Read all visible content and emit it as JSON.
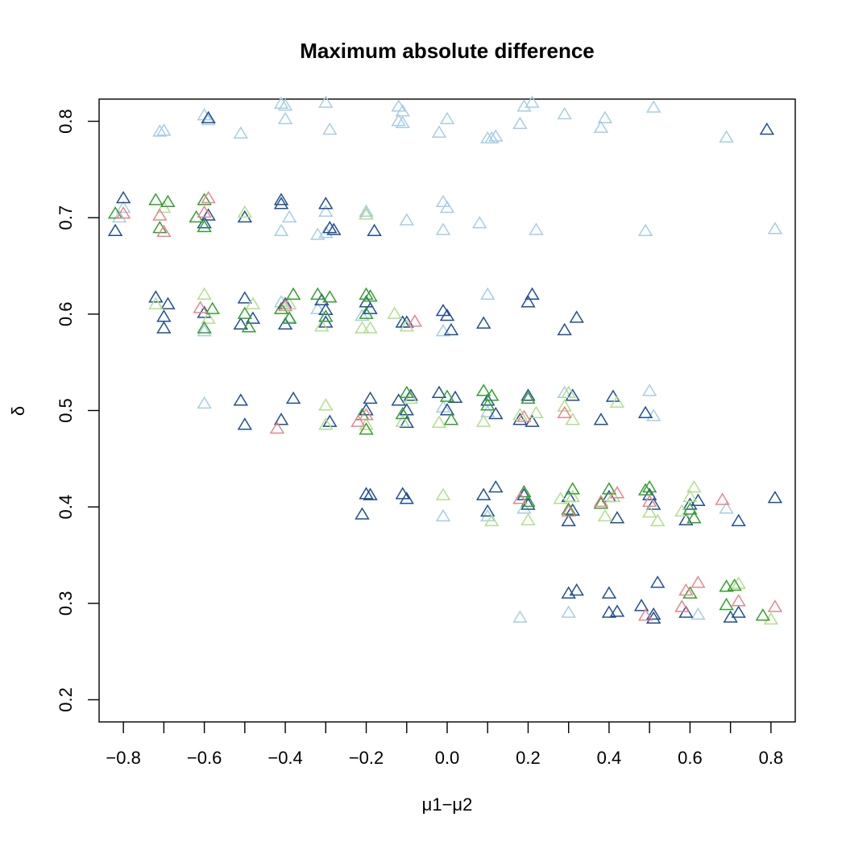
{
  "chart_data": {
    "type": "scatter",
    "title": "Maximum absolute difference",
    "xlabel": "μ1−μ2",
    "ylabel": "δ",
    "xlim": [
      -0.86,
      0.86
    ],
    "ylim": [
      0.177,
      0.823
    ],
    "xticks": [
      -0.8,
      -0.7,
      -0.6,
      -0.5,
      -0.4,
      -0.3,
      -0.2,
      -0.1,
      0.0,
      0.1,
      0.2,
      0.3,
      0.4,
      0.5,
      0.6,
      0.7,
      0.8
    ],
    "xtick_labels": [
      "−0.8",
      "",
      "−0.6",
      "",
      "−0.4",
      "",
      "−0.2",
      "",
      "0.0",
      "",
      "0.2",
      "",
      "0.4",
      "",
      "0.6",
      "",
      "0.8"
    ],
    "yticks": [
      0.2,
      0.3,
      0.4,
      0.5,
      0.6,
      0.7,
      0.8
    ],
    "ytick_labels": [
      "0.2",
      "0.3",
      "0.4",
      "0.5",
      "0.6",
      "0.7",
      "0.8"
    ],
    "grid": false,
    "marker": "open-triangle",
    "series": [
      {
        "color": "#a6cee3",
        "points": [
          [
            -0.6,
            0.806
          ],
          [
            -0.59,
            0.801
          ],
          [
            -0.71,
            0.789
          ],
          [
            -0.7,
            0.79
          ],
          [
            -0.51,
            0.787
          ],
          [
            -0.41,
            0.818
          ],
          [
            -0.4,
            0.816
          ],
          [
            -0.4,
            0.802
          ],
          [
            -0.3,
            0.819
          ],
          [
            -0.29,
            0.791
          ],
          [
            -0.12,
            0.815
          ],
          [
            -0.11,
            0.81
          ],
          [
            -0.12,
            0.8
          ],
          [
            -0.11,
            0.798
          ],
          [
            -0.02,
            0.788
          ],
          [
            0.0,
            0.802
          ],
          [
            0.1,
            0.782
          ],
          [
            0.11,
            0.782
          ],
          [
            0.12,
            0.784
          ],
          [
            0.19,
            0.815
          ],
          [
            0.21,
            0.819
          ],
          [
            0.18,
            0.797
          ],
          [
            0.29,
            0.807
          ],
          [
            0.38,
            0.793
          ],
          [
            0.39,
            0.803
          ],
          [
            0.51,
            0.814
          ],
          [
            0.69,
            0.783
          ],
          [
            -0.81,
            0.7
          ],
          [
            -0.8,
            0.71
          ],
          [
            -0.41,
            0.686
          ],
          [
            -0.39,
            0.7
          ],
          [
            -0.3,
            0.684
          ],
          [
            -0.32,
            0.682
          ],
          [
            -0.3,
            0.706
          ],
          [
            -0.2,
            0.706
          ],
          [
            -0.1,
            0.697
          ],
          [
            -0.01,
            0.716
          ],
          [
            0.0,
            0.71
          ],
          [
            -0.01,
            0.687
          ],
          [
            0.08,
            0.694
          ],
          [
            0.22,
            0.687
          ],
          [
            0.49,
            0.686
          ],
          [
            0.81,
            0.688
          ],
          [
            -0.6,
            0.582
          ],
          [
            -0.41,
            0.612
          ],
          [
            -0.39,
            0.596
          ],
          [
            -0.32,
            0.605
          ],
          [
            -0.21,
            0.598
          ],
          [
            -0.01,
            0.582
          ],
          [
            0.1,
            0.62
          ],
          [
            -0.6,
            0.507
          ],
          [
            -0.01,
            0.503
          ],
          [
            0.1,
            0.498
          ],
          [
            0.29,
            0.518
          ],
          [
            0.5,
            0.52
          ],
          [
            0.51,
            0.494
          ],
          [
            0.1,
            0.39
          ],
          [
            0.19,
            0.398
          ],
          [
            0.69,
            0.398
          ],
          [
            -0.01,
            0.39
          ],
          [
            0.18,
            0.285
          ],
          [
            0.3,
            0.29
          ],
          [
            0.62,
            0.288
          ]
        ]
      },
      {
        "color": "#1f4e96",
        "points": [
          [
            -0.59,
            0.803
          ],
          [
            0.79,
            0.791
          ],
          [
            -0.82,
            0.686
          ],
          [
            -0.8,
            0.72
          ],
          [
            -0.6,
            0.694
          ],
          [
            -0.59,
            0.702
          ],
          [
            -0.5,
            0.7
          ],
          [
            -0.41,
            0.718
          ],
          [
            -0.41,
            0.714
          ],
          [
            -0.3,
            0.714
          ],
          [
            -0.29,
            0.689
          ],
          [
            -0.2,
            0.703
          ],
          [
            -0.18,
            0.686
          ],
          [
            -0.28,
            0.687
          ],
          [
            -0.72,
            0.617
          ],
          [
            -0.7,
            0.585
          ],
          [
            -0.69,
            0.61
          ],
          [
            -0.7,
            0.597
          ],
          [
            -0.6,
            0.601
          ],
          [
            -0.5,
            0.616
          ],
          [
            -0.51,
            0.589
          ],
          [
            -0.48,
            0.595
          ],
          [
            -0.4,
            0.61
          ],
          [
            -0.4,
            0.589
          ],
          [
            -0.31,
            0.614
          ],
          [
            -0.3,
            0.604
          ],
          [
            -0.3,
            0.591
          ],
          [
            -0.2,
            0.612
          ],
          [
            -0.19,
            0.605
          ],
          [
            -0.11,
            0.591
          ],
          [
            -0.1,
            0.591
          ],
          [
            -0.01,
            0.603
          ],
          [
            0.0,
            0.598
          ],
          [
            0.01,
            0.583
          ],
          [
            0.09,
            0.59
          ],
          [
            0.2,
            0.612
          ],
          [
            0.21,
            0.62
          ],
          [
            0.29,
            0.583
          ],
          [
            0.32,
            0.596
          ],
          [
            -0.51,
            0.51
          ],
          [
            -0.5,
            0.485
          ],
          [
            -0.41,
            0.49
          ],
          [
            -0.38,
            0.512
          ],
          [
            -0.29,
            0.488
          ],
          [
            -0.2,
            0.5
          ],
          [
            -0.19,
            0.512
          ],
          [
            -0.12,
            0.51
          ],
          [
            -0.1,
            0.5
          ],
          [
            -0.09,
            0.515
          ],
          [
            -0.1,
            0.487
          ],
          [
            -0.02,
            0.518
          ],
          [
            0.0,
            0.5
          ],
          [
            0.02,
            0.513
          ],
          [
            0.1,
            0.51
          ],
          [
            0.12,
            0.496
          ],
          [
            0.18,
            0.49
          ],
          [
            0.2,
            0.515
          ],
          [
            0.21,
            0.488
          ],
          [
            0.31,
            0.515
          ],
          [
            0.38,
            0.49
          ],
          [
            0.41,
            0.514
          ],
          [
            0.49,
            0.497
          ],
          [
            -0.21,
            0.392
          ],
          [
            -0.2,
            0.413
          ],
          [
            -0.19,
            0.412
          ],
          [
            -0.11,
            0.413
          ],
          [
            -0.1,
            0.408
          ],
          [
            0.09,
            0.412
          ],
          [
            0.1,
            0.395
          ],
          [
            0.12,
            0.42
          ],
          [
            0.19,
            0.412
          ],
          [
            0.2,
            0.402
          ],
          [
            0.3,
            0.41
          ],
          [
            0.31,
            0.396
          ],
          [
            0.3,
            0.385
          ],
          [
            0.4,
            0.41
          ],
          [
            0.42,
            0.388
          ],
          [
            0.5,
            0.412
          ],
          [
            0.51,
            0.402
          ],
          [
            0.6,
            0.402
          ],
          [
            0.59,
            0.386
          ],
          [
            0.62,
            0.406
          ],
          [
            0.72,
            0.385
          ],
          [
            0.81,
            0.409
          ],
          [
            0.3,
            0.31
          ],
          [
            0.32,
            0.313
          ],
          [
            0.4,
            0.31
          ],
          [
            0.4,
            0.29
          ],
          [
            0.42,
            0.291
          ],
          [
            0.48,
            0.297
          ],
          [
            0.51,
            0.288
          ],
          [
            0.52,
            0.321
          ],
          [
            0.51,
            0.284
          ],
          [
            0.59,
            0.29
          ],
          [
            0.7,
            0.285
          ],
          [
            0.72,
            0.29
          ]
        ]
      },
      {
        "color": "#b2df8a",
        "points": [
          [
            -0.5,
            0.705
          ],
          [
            -0.2,
            0.703
          ],
          [
            -0.7,
            0.71
          ],
          [
            -0.72,
            0.61
          ],
          [
            -0.6,
            0.62
          ],
          [
            -0.59,
            0.595
          ],
          [
            -0.48,
            0.61
          ],
          [
            -0.39,
            0.61
          ],
          [
            -0.31,
            0.587
          ],
          [
            -0.21,
            0.585
          ],
          [
            -0.19,
            0.585
          ],
          [
            -0.13,
            0.6
          ],
          [
            -0.1,
            0.587
          ],
          [
            -0.3,
            0.505
          ],
          [
            -0.3,
            0.485
          ],
          [
            -0.2,
            0.485
          ],
          [
            -0.11,
            0.488
          ],
          [
            -0.09,
            0.512
          ],
          [
            -0.02,
            0.487
          ],
          [
            0.09,
            0.488
          ],
          [
            0.18,
            0.495
          ],
          [
            0.22,
            0.497
          ],
          [
            0.29,
            0.504
          ],
          [
            0.31,
            0.49
          ],
          [
            0.3,
            0.518
          ],
          [
            0.42,
            0.508
          ],
          [
            -0.01,
            0.412
          ],
          [
            0.11,
            0.385
          ],
          [
            0.2,
            0.386
          ],
          [
            0.28,
            0.408
          ],
          [
            0.31,
            0.41
          ],
          [
            0.39,
            0.39
          ],
          [
            0.41,
            0.41
          ],
          [
            0.5,
            0.394
          ],
          [
            0.52,
            0.385
          ],
          [
            0.58,
            0.395
          ],
          [
            0.61,
            0.42
          ],
          [
            0.6,
            0.41
          ],
          [
            0.72,
            0.32
          ],
          [
            0.8,
            0.283
          ]
        ]
      },
      {
        "color": "#33a02c",
        "points": [
          [
            -0.82,
            0.704
          ],
          [
            -0.72,
            0.718
          ],
          [
            -0.69,
            0.716
          ],
          [
            -0.71,
            0.689
          ],
          [
            -0.62,
            0.7
          ],
          [
            -0.6,
            0.718
          ],
          [
            -0.6,
            0.69
          ],
          [
            -0.6,
            0.585
          ],
          [
            -0.58,
            0.605
          ],
          [
            -0.5,
            0.6
          ],
          [
            -0.49,
            0.586
          ],
          [
            -0.41,
            0.605
          ],
          [
            -0.38,
            0.62
          ],
          [
            -0.39,
            0.595
          ],
          [
            -0.32,
            0.62
          ],
          [
            -0.29,
            0.617
          ],
          [
            -0.3,
            0.597
          ],
          [
            -0.2,
            0.62
          ],
          [
            -0.19,
            0.618
          ],
          [
            -0.2,
            0.6
          ],
          [
            -0.21,
            0.495
          ],
          [
            -0.2,
            0.48
          ],
          [
            -0.1,
            0.518
          ],
          [
            -0.11,
            0.496
          ],
          [
            0.0,
            0.514
          ],
          [
            0.01,
            0.49
          ],
          [
            0.09,
            0.52
          ],
          [
            0.1,
            0.505
          ],
          [
            0.11,
            0.515
          ],
          [
            0.2,
            0.512
          ],
          [
            0.19,
            0.415
          ],
          [
            0.2,
            0.405
          ],
          [
            0.3,
            0.397
          ],
          [
            0.31,
            0.418
          ],
          [
            0.38,
            0.403
          ],
          [
            0.4,
            0.418
          ],
          [
            0.49,
            0.417
          ],
          [
            0.5,
            0.42
          ],
          [
            0.6,
            0.397
          ],
          [
            0.61,
            0.388
          ],
          [
            0.6,
            0.31
          ],
          [
            0.69,
            0.298
          ],
          [
            0.71,
            0.318
          ],
          [
            0.69,
            0.317
          ],
          [
            0.78,
            0.287
          ]
        ]
      },
      {
        "color": "#e7858f",
        "points": [
          [
            -0.8,
            0.704
          ],
          [
            -0.71,
            0.702
          ],
          [
            -0.7,
            0.685
          ],
          [
            -0.59,
            0.72
          ],
          [
            -0.6,
            0.705
          ],
          [
            -0.61,
            0.606
          ],
          [
            -0.4,
            0.608
          ],
          [
            -0.08,
            0.592
          ],
          [
            -0.42,
            0.481
          ],
          [
            -0.2,
            0.495
          ],
          [
            -0.22,
            0.488
          ],
          [
            0.19,
            0.493
          ],
          [
            0.29,
            0.497
          ],
          [
            0.18,
            0.408
          ],
          [
            0.3,
            0.395
          ],
          [
            0.38,
            0.405
          ],
          [
            0.42,
            0.414
          ],
          [
            0.5,
            0.405
          ],
          [
            0.68,
            0.407
          ],
          [
            0.49,
            0.287
          ],
          [
            0.58,
            0.296
          ],
          [
            0.59,
            0.313
          ],
          [
            0.62,
            0.321
          ],
          [
            0.72,
            0.302
          ],
          [
            0.81,
            0.296
          ]
        ]
      }
    ]
  }
}
